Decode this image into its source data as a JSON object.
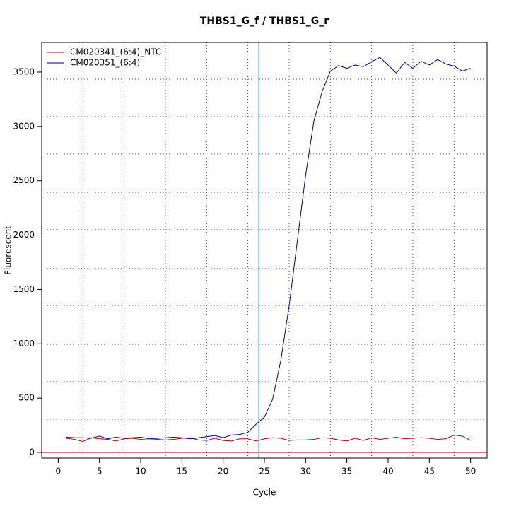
{
  "chart_data": {
    "type": "line",
    "title": "THBS1_G_f / THBS1_G_r",
    "x_label": "Cycle",
    "y_label": "Fluorescent",
    "x": [
      1,
      2,
      3,
      4,
      5,
      6,
      7,
      8,
      9,
      10,
      11,
      12,
      13,
      14,
      15,
      16,
      17,
      18,
      19,
      20,
      21,
      22,
      23,
      24,
      25,
      26,
      27,
      28,
      29,
      30,
      31,
      32,
      33,
      34,
      35,
      36,
      37,
      38,
      39,
      40,
      41,
      42,
      43,
      44,
      45,
      46,
      47,
      48,
      49,
      50
    ],
    "series": [
      {
        "name": "CM020341_(6:4)_NTC",
        "color": "#a0001a",
        "values": [
          130,
          120,
          100,
          135,
          125,
          120,
          105,
          125,
          130,
          120,
          115,
          120,
          115,
          120,
          130,
          135,
          115,
          110,
          130,
          110,
          105,
          125,
          125,
          105,
          125,
          135,
          130,
          110,
          115,
          115,
          120,
          135,
          130,
          115,
          105,
          130,
          110,
          135,
          120,
          130,
          140,
          125,
          130,
          135,
          130,
          120,
          125,
          160,
          150,
          110
        ]
      },
      {
        "name": "CM020351_(6:4)",
        "color": "#000080",
        "values": [
          140,
          135,
          135,
          130,
          150,
          125,
          140,
          130,
          135,
          140,
          125,
          130,
          135,
          140,
          135,
          125,
          135,
          145,
          155,
          135,
          160,
          165,
          185,
          260,
          325,
          490,
          850,
          1350,
          1950,
          2550,
          3050,
          3320,
          3510,
          3560,
          3535,
          3565,
          3550,
          3595,
          3635,
          3565,
          3490,
          3590,
          3535,
          3600,
          3565,
          3615,
          3575,
          3555,
          3510,
          3535
        ]
      }
    ],
    "xlim": [
      -2,
      52
    ],
    "ylim": [
      -52,
      3773
    ],
    "xticks": [
      0,
      5,
      10,
      15,
      20,
      25,
      30,
      35,
      40,
      45,
      50
    ],
    "yticks": [
      0,
      500,
      1000,
      1500,
      2000,
      2500,
      3000,
      3500
    ],
    "xgrid": [
      3,
      8,
      13,
      18,
      23,
      28,
      33,
      38,
      43,
      48
    ],
    "ygrid": [
      306,
      651,
      995,
      1353,
      1692,
      2050,
      2394,
      2746,
      3090,
      3435
    ],
    "threshold_x": {
      "value": 24.3,
      "color": "#00e5ee"
    },
    "baseline_y": {
      "value": 0,
      "color": "#a0001a"
    },
    "legend": "top-left"
  }
}
